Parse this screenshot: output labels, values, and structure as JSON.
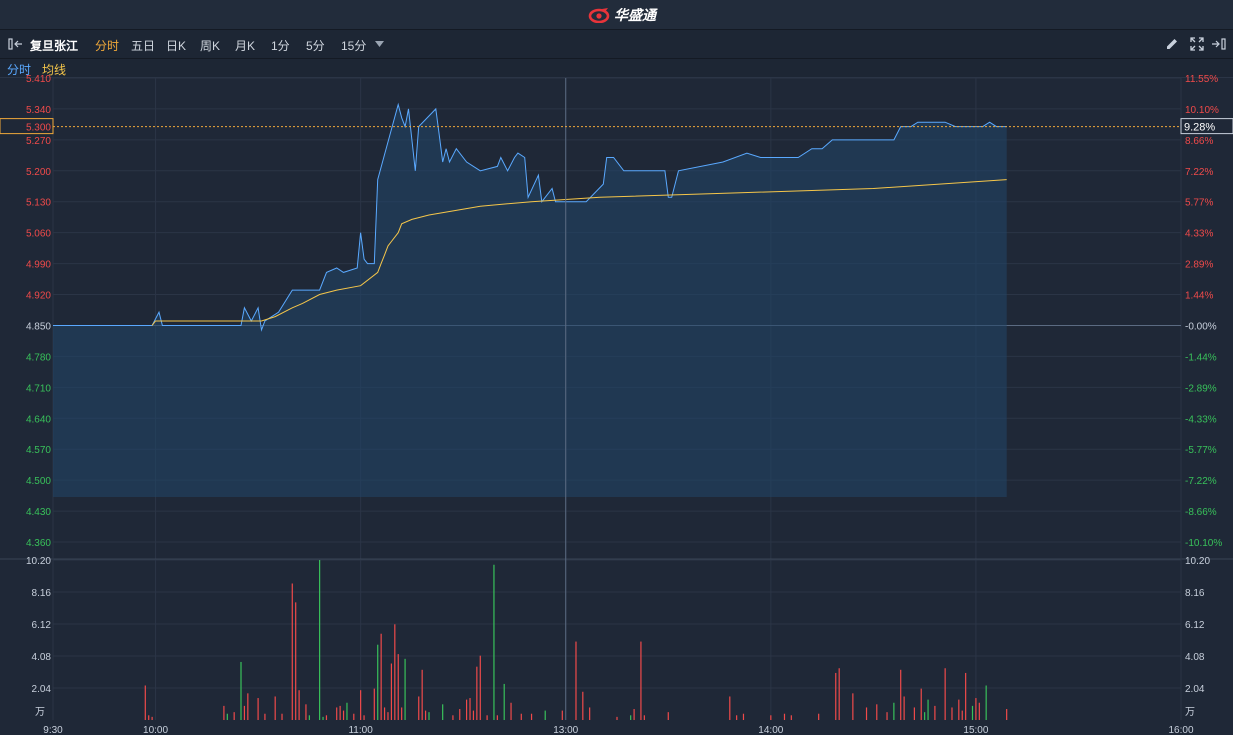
{
  "app": {
    "logo_text": "华盛通",
    "logo_icon": "huashengtong-logo-icon"
  },
  "toolbar": {
    "stock_name": "复旦张江",
    "tabs": [
      "分时",
      "五日",
      "日K",
      "周K",
      "月K",
      "1分",
      "5分",
      "15分"
    ],
    "active_tab": "分时",
    "icons": [
      "collapse-panel-icon",
      "chevron-down-icon",
      "pencil-icon",
      "fullscreen-icon",
      "expand-panel-icon"
    ]
  },
  "legend": {
    "price_label": "分时",
    "avg_label": "均线"
  },
  "colors": {
    "up": "#f04a4a",
    "down": "#38c15a",
    "price_line": "#5aa9ff",
    "avg_line": "#f5c64a",
    "crosshair": "#f0a83a"
  },
  "crosshair": {
    "price": "5.300",
    "percent": "9.28%"
  },
  "chart_data": [
    {
      "type": "line",
      "x_ticks": [
        "9:30",
        "10:00",
        "11:00",
        "13:00",
        "14:00",
        "15:00",
        "16:00"
      ],
      "price_ticks": [
        "5.410",
        "5.340",
        "5.270",
        "5.200",
        "5.130",
        "5.060",
        "4.990",
        "4.920",
        "4.850",
        "4.780",
        "4.710",
        "4.640",
        "4.570",
        "4.500",
        "4.430",
        "4.360"
      ],
      "percent_ticks": [
        "11.55%",
        "10.10%",
        "8.66%",
        "7.22%",
        "5.77%",
        "4.33%",
        "2.89%",
        "1.44%",
        "-0.00%",
        "-1.44%",
        "-2.89%",
        "-4.33%",
        "-5.77%",
        "-7.22%",
        "-8.66%",
        "-10.10%"
      ],
      "ylim": [
        4.36,
        5.41
      ],
      "prev_close": 4.85,
      "grid": true,
      "series": [
        {
          "name": "分时",
          "points": [
            [
              0,
              4.85
            ],
            [
              29,
              4.85
            ],
            [
              31,
              4.88
            ],
            [
              32,
              4.85
            ],
            [
              55,
              4.85
            ],
            [
              56,
              4.89
            ],
            [
              58,
              4.86
            ],
            [
              60,
              4.89
            ],
            [
              61,
              4.84
            ],
            [
              62,
              4.86
            ],
            [
              66,
              4.88
            ],
            [
              70,
              4.93
            ],
            [
              78,
              4.93
            ],
            [
              80,
              4.97
            ],
            [
              83,
              4.98
            ],
            [
              85,
              4.97
            ],
            [
              89,
              4.98
            ],
            [
              90,
              5.06
            ],
            [
              91,
              5.0
            ],
            [
              92,
              4.99
            ],
            [
              94,
              4.99
            ],
            [
              95,
              5.18
            ],
            [
              101,
              5.35
            ],
            [
              102,
              5.32
            ],
            [
              103,
              5.3
            ],
            [
              104,
              5.34
            ],
            [
              106,
              5.2
            ],
            [
              107,
              5.3
            ],
            [
              112,
              5.34
            ],
            [
              113,
              5.28
            ],
            [
              114,
              5.22
            ],
            [
              115,
              5.25
            ],
            [
              116,
              5.22
            ],
            [
              118,
              5.25
            ],
            [
              121,
              5.22
            ],
            [
              125,
              5.2
            ],
            [
              130,
              5.21
            ],
            [
              131,
              5.23
            ],
            [
              133,
              5.2
            ],
            [
              135,
              5.23
            ],
            [
              136,
              5.24
            ],
            [
              138,
              5.23
            ],
            [
              139,
              5.14
            ],
            [
              142,
              5.19
            ],
            [
              143,
              5.13
            ],
            [
              146,
              5.16
            ],
            [
              147,
              5.13
            ],
            [
              150,
              5.13
            ],
            [
              156,
              5.13
            ],
            [
              161,
              5.17
            ],
            [
              162,
              5.23
            ],
            [
              164,
              5.23
            ],
            [
              167,
              5.2
            ],
            [
              179,
              5.2
            ],
            [
              180,
              5.14
            ],
            [
              181,
              5.14
            ],
            [
              183,
              5.2
            ],
            [
              196,
              5.22
            ],
            [
              203,
              5.24
            ],
            [
              207,
              5.23
            ],
            [
              218,
              5.23
            ],
            [
              222,
              5.25
            ],
            [
              225,
              5.25
            ],
            [
              228,
              5.27
            ],
            [
              246,
              5.27
            ],
            [
              248,
              5.3
            ],
            [
              251,
              5.3
            ],
            [
              253,
              5.31
            ],
            [
              261,
              5.31
            ],
            [
              264,
              5.3
            ],
            [
              272,
              5.3
            ],
            [
              274,
              5.31
            ],
            [
              276,
              5.3
            ],
            [
              279,
              5.3
            ]
          ]
        },
        {
          "name": "均线",
          "points": [
            [
              29,
              4.85
            ],
            [
              30,
              4.86
            ],
            [
              55,
              4.86
            ],
            [
              58,
              4.86
            ],
            [
              61,
              4.86
            ],
            [
              65,
              4.87
            ],
            [
              70,
              4.89
            ],
            [
              73,
              4.9
            ],
            [
              78,
              4.92
            ],
            [
              83,
              4.93
            ],
            [
              90,
              4.94
            ],
            [
              95,
              4.97
            ],
            [
              96,
              4.99
            ],
            [
              97,
              5.01
            ],
            [
              98,
              5.03
            ],
            [
              99,
              5.04
            ],
            [
              101,
              5.06
            ],
            [
              102,
              5.08
            ],
            [
              105,
              5.09
            ],
            [
              110,
              5.1
            ],
            [
              125,
              5.12
            ],
            [
              140,
              5.13
            ],
            [
              160,
              5.14
            ],
            [
              200,
              5.15
            ],
            [
              240,
              5.16
            ],
            [
              279,
              5.18
            ]
          ]
        }
      ]
    },
    {
      "type": "bar",
      "title": "",
      "unit": "万",
      "y_ticks": [
        "10.20",
        "8.16",
        "6.12",
        "4.08",
        "2.04"
      ],
      "ylim": [
        0,
        10.2
      ],
      "series": [
        {
          "name": "volume",
          "points": [
            [
              27,
              2.2,
              "up"
            ],
            [
              28,
              0.3,
              "up"
            ],
            [
              29,
              0.2,
              "up"
            ],
            [
              50,
              0.9,
              "up"
            ],
            [
              51,
              0.4,
              "down"
            ],
            [
              53,
              0.5,
              "up"
            ],
            [
              55,
              3.7,
              "down"
            ],
            [
              56,
              0.9,
              "up"
            ],
            [
              57,
              1.7,
              "up"
            ],
            [
              60,
              1.4,
              "up"
            ],
            [
              62,
              0.4,
              "up"
            ],
            [
              65,
              1.5,
              "up"
            ],
            [
              67,
              0.4,
              "up"
            ],
            [
              70,
              8.7,
              "up"
            ],
            [
              71,
              7.5,
              "up"
            ],
            [
              72,
              1.9,
              "up"
            ],
            [
              74,
              1.0,
              "up"
            ],
            [
              75,
              0.3,
              "down"
            ],
            [
              78,
              10.2,
              "down"
            ],
            [
              79,
              0.2,
              "down"
            ],
            [
              80,
              0.3,
              "up"
            ],
            [
              83,
              0.8,
              "up"
            ],
            [
              84,
              0.9,
              "up"
            ],
            [
              85,
              0.6,
              "up"
            ],
            [
              86,
              1.1,
              "down"
            ],
            [
              88,
              0.4,
              "up"
            ],
            [
              90,
              1.9,
              "up"
            ],
            [
              91,
              0.3,
              "up"
            ],
            [
              94,
              2.0,
              "up"
            ],
            [
              95,
              4.8,
              "down"
            ],
            [
              96,
              5.5,
              "up"
            ],
            [
              97,
              0.8,
              "up"
            ],
            [
              98,
              0.5,
              "up"
            ],
            [
              99,
              3.6,
              "up"
            ],
            [
              100,
              6.1,
              "up"
            ],
            [
              101,
              4.2,
              "up"
            ],
            [
              102,
              0.8,
              "up"
            ],
            [
              103,
              3.9,
              "down"
            ],
            [
              107,
              1.5,
              "up"
            ],
            [
              108,
              3.2,
              "up"
            ],
            [
              109,
              0.6,
              "up"
            ],
            [
              110,
              0.5,
              "down"
            ],
            [
              114,
              1.0,
              "down"
            ],
            [
              117,
              0.3,
              "up"
            ],
            [
              119,
              0.7,
              "up"
            ],
            [
              121,
              1.3,
              "up"
            ],
            [
              122,
              1.4,
              "up"
            ],
            [
              123,
              0.6,
              "up"
            ],
            [
              124,
              3.4,
              "up"
            ],
            [
              125,
              4.1,
              "up"
            ],
            [
              127,
              0.3,
              "up"
            ],
            [
              129,
              9.9,
              "down"
            ],
            [
              130,
              0.3,
              "up"
            ],
            [
              132,
              2.3,
              "down"
            ],
            [
              134,
              1.1,
              "up"
            ],
            [
              137,
              0.4,
              "up"
            ],
            [
              140,
              0.4,
              "up"
            ],
            [
              144,
              0.6,
              "down"
            ],
            [
              149,
              0.6,
              "up"
            ],
            [
              153,
              5.0,
              "up"
            ],
            [
              155,
              1.8,
              "up"
            ],
            [
              157,
              0.8,
              "up"
            ],
            [
              165,
              0.2,
              "up"
            ],
            [
              169,
              0.3,
              "down"
            ],
            [
              170,
              0.7,
              "up"
            ],
            [
              172,
              5.0,
              "up"
            ],
            [
              173,
              0.3,
              "up"
            ],
            [
              180,
              0.5,
              "up"
            ],
            [
              198,
              1.5,
              "up"
            ],
            [
              200,
              0.3,
              "up"
            ],
            [
              202,
              0.4,
              "up"
            ],
            [
              210,
              0.3,
              "up"
            ],
            [
              214,
              0.4,
              "up"
            ],
            [
              216,
              0.3,
              "up"
            ],
            [
              224,
              0.4,
              "up"
            ],
            [
              229,
              3.0,
              "up"
            ],
            [
              230,
              3.3,
              "up"
            ],
            [
              234,
              1.7,
              "up"
            ],
            [
              238,
              0.8,
              "up"
            ],
            [
              241,
              1.0,
              "up"
            ],
            [
              244,
              0.5,
              "up"
            ],
            [
              246,
              1.1,
              "down"
            ],
            [
              248,
              3.2,
              "up"
            ],
            [
              249,
              1.5,
              "up"
            ],
            [
              252,
              0.8,
              "up"
            ],
            [
              254,
              2.0,
              "up"
            ],
            [
              255,
              0.5,
              "down"
            ],
            [
              256,
              1.3,
              "down"
            ],
            [
              258,
              0.9,
              "up"
            ],
            [
              261,
              3.3,
              "up"
            ],
            [
              263,
              0.8,
              "up"
            ],
            [
              265,
              1.3,
              "up"
            ],
            [
              266,
              0.6,
              "up"
            ],
            [
              267,
              3.0,
              "up"
            ],
            [
              269,
              0.9,
              "down"
            ],
            [
              270,
              1.4,
              "up"
            ],
            [
              271,
              1.1,
              "up"
            ],
            [
              273,
              2.2,
              "down"
            ],
            [
              279,
              0.7,
              "up"
            ]
          ]
        }
      ]
    }
  ]
}
